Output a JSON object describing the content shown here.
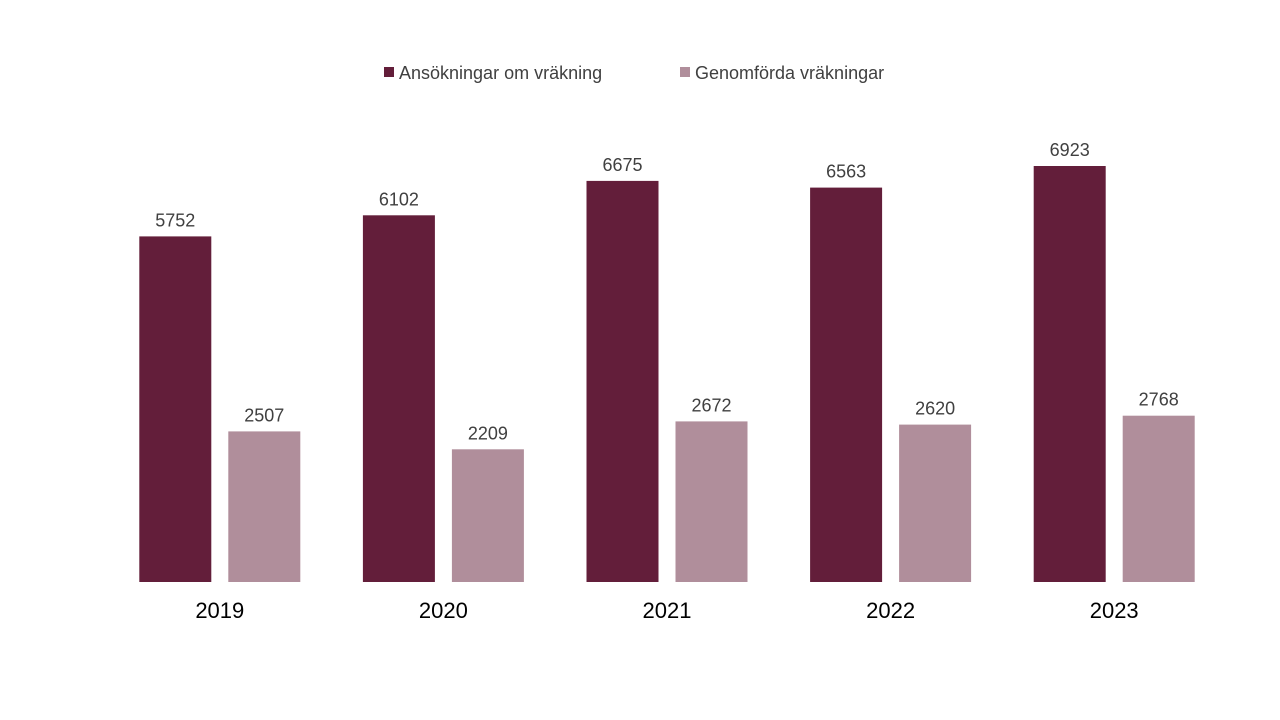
{
  "chart_data": {
    "type": "bar",
    "title": "",
    "xlabel": "",
    "ylabel": "",
    "categories": [
      "2019",
      "2020",
      "2021",
      "2022",
      "2023"
    ],
    "series": [
      {
        "name": "Ansökningar om vräkning",
        "color": "#631E3A",
        "values": [
          5752,
          6102,
          6675,
          6563,
          6923
        ]
      },
      {
        "name": "Genomförda vräkningar",
        "color": "#B08E9B",
        "values": [
          2507,
          2209,
          2672,
          2620,
          2768
        ]
      }
    ],
    "ylim": [
      0,
      7000
    ],
    "grid": false,
    "y_axis_visible": false,
    "legend_position": "top-center",
    "data_labels": true
  }
}
